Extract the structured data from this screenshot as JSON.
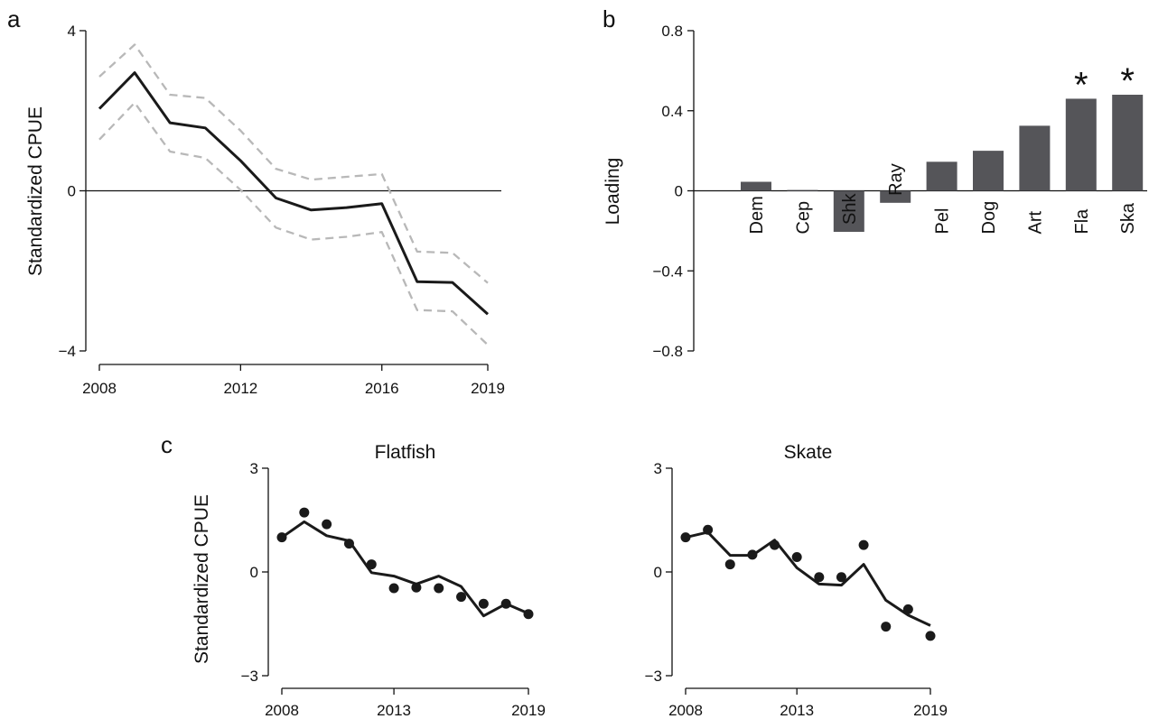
{
  "chart_data": [
    {
      "panel": "a",
      "type": "line",
      "ylabel": "Standardized CPUE",
      "xlabel": "",
      "ylim": [
        -4,
        4
      ],
      "yticks": [
        -4,
        0,
        4
      ],
      "xlim": [
        2008,
        2019
      ],
      "xticks": [
        2008,
        2012,
        2016,
        2019
      ],
      "zero_line": true,
      "x": [
        2008,
        2009,
        2010,
        2011,
        2012,
        2013,
        2014,
        2015,
        2016,
        2017,
        2018,
        2019
      ],
      "series": [
        {
          "role": "trend",
          "style": "solid",
          "color": "#1a1a1a",
          "values": [
            2.05,
            2.95,
            1.7,
            1.57,
            0.75,
            -0.18,
            -0.48,
            -0.42,
            -0.32,
            -2.27,
            -2.29,
            -3.08
          ]
        },
        {
          "role": "upper bound",
          "style": "dashed",
          "color": "#b8b8b8",
          "values": [
            2.85,
            3.65,
            2.4,
            2.32,
            1.5,
            0.55,
            0.28,
            0.35,
            0.42,
            -1.52,
            -1.55,
            -2.3
          ]
        },
        {
          "role": "lower bound",
          "style": "dashed",
          "color": "#b8b8b8",
          "values": [
            1.28,
            2.2,
            0.98,
            0.82,
            0.02,
            -0.92,
            -1.22,
            -1.15,
            -1.03,
            -2.98,
            -3.01,
            -3.85
          ]
        }
      ]
    },
    {
      "panel": "b",
      "type": "bar",
      "ylabel": "Loading",
      "xlabel": "",
      "ylim": [
        -0.8,
        0.8
      ],
      "yticks": [
        "−0.8",
        "−0.4",
        "0",
        "0.4",
        "0.8"
      ],
      "ytick_values": [
        -0.8,
        -0.4,
        0,
        0.4,
        0.8
      ],
      "bar_color": "#555559",
      "categories": [
        "Dem",
        "Cep",
        "Shk",
        "Ray",
        "Pel",
        "Dog",
        "Art",
        "Fla",
        "Ska"
      ],
      "values": [
        0.045,
        0.004,
        -0.205,
        -0.06,
        0.145,
        0.2,
        0.325,
        0.46,
        0.48
      ],
      "significant": [
        false,
        false,
        false,
        false,
        false,
        false,
        false,
        true,
        true
      ],
      "significance_marker": "*"
    },
    {
      "panel": "c",
      "type": "line",
      "title": "Flatfish",
      "ylabel": "Standardized CPUE",
      "ylim": [
        -3,
        3
      ],
      "yticks": [
        -3,
        0,
        3
      ],
      "xlim": [
        2008,
        2019
      ],
      "xticks": [
        2008,
        2013,
        2019
      ],
      "x": [
        2008,
        2009,
        2010,
        2011,
        2012,
        2013,
        2014,
        2015,
        2016,
        2017,
        2018,
        2019
      ],
      "series": [
        {
          "role": "fitted",
          "style": "line",
          "color": "#1a1a1a",
          "values": [
            1.0,
            1.45,
            1.05,
            0.9,
            -0.02,
            -0.12,
            -0.35,
            -0.12,
            -0.42,
            -1.27,
            -0.92,
            -1.2
          ]
        },
        {
          "role": "observed",
          "style": "points",
          "color": "#1a1a1a",
          "values": [
            1.0,
            1.72,
            1.38,
            0.82,
            0.22,
            -0.47,
            -0.45,
            -0.47,
            -0.72,
            -0.92,
            -0.92,
            -1.22
          ]
        }
      ]
    },
    {
      "panel": "c",
      "type": "line",
      "title": "Skate",
      "ylabel": "",
      "ylim": [
        -3,
        3
      ],
      "yticks": [
        -3,
        0,
        3
      ],
      "xlim": [
        2008,
        2019
      ],
      "xticks": [
        2008,
        2013,
        2019
      ],
      "x": [
        2008,
        2009,
        2010,
        2011,
        2012,
        2013,
        2014,
        2015,
        2016,
        2017,
        2018,
        2019
      ],
      "series": [
        {
          "role": "fitted",
          "style": "line",
          "color": "#1a1a1a",
          "values": [
            1.0,
            1.15,
            0.48,
            0.48,
            0.92,
            0.12,
            -0.35,
            -0.38,
            0.22,
            -0.82,
            -1.25,
            -1.55
          ]
        },
        {
          "role": "observed",
          "style": "points",
          "color": "#1a1a1a",
          "values": [
            1.0,
            1.22,
            0.22,
            0.5,
            0.78,
            0.43,
            -0.15,
            -0.15,
            0.78,
            -1.58,
            -1.08,
            -1.85
          ]
        }
      ]
    }
  ]
}
